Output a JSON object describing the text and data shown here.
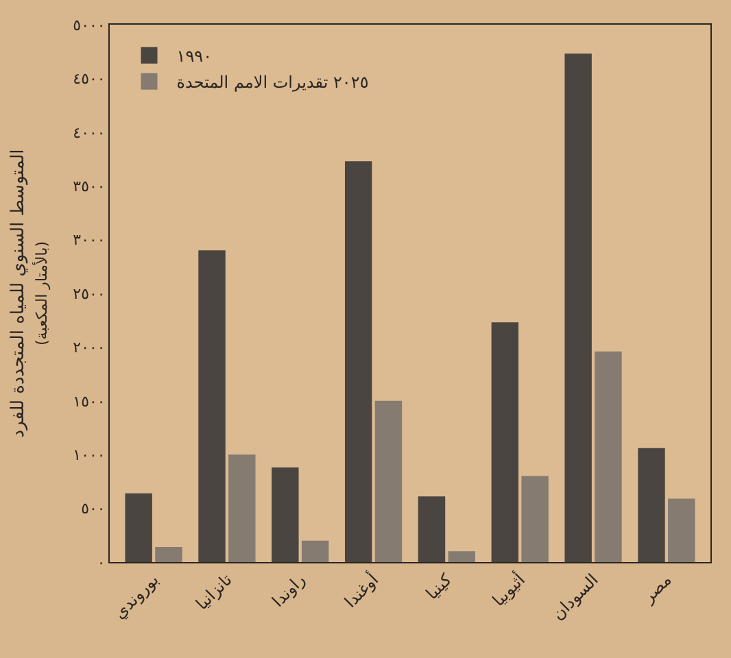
{
  "chart_data": {
    "type": "bar",
    "ylabel": "المتوسط السنوي للمياه المتجددة للفرد$_{(بالأمتار المكعبة)}$",
    "categories": [
      "بوروندي",
      "تانزانيا",
      "راوندا",
      "أوغندا",
      "كينيا",
      "أثيوبيا",
      "السودان",
      "مصر"
    ],
    "series": [
      {
        "name": "١٩٩٠",
        "color": "#4a4540",
        "values": [
          640,
          2900,
          880,
          3730,
          610,
          2230,
          4730,
          1060
        ]
      },
      {
        "name": "٢٠٢٥ تقديرات الامم المتحدة",
        "color": "#857b70",
        "values": [
          140,
          1000,
          200,
          1500,
          100,
          800,
          1960,
          590
        ]
      }
    ],
    "ylim": [
      0,
      5000
    ],
    "yticks": [
      {
        "value": 0,
        "label": "٠"
      },
      {
        "value": 500,
        "label": "٥٠٠"
      },
      {
        "value": 1000,
        "label": "١٠٠٠"
      },
      {
        "value": 1500,
        "label": "١٥٠٠"
      },
      {
        "value": 2000,
        "label": "٢٠٠٠"
      },
      {
        "value": 2500,
        "label": "٢٥٠٠"
      },
      {
        "value": 3000,
        "label": "٣٠٠٠"
      },
      {
        "value": 3500,
        "label": "٣٥٠٠"
      },
      {
        "value": 4000,
        "label": "٤٠٠٠"
      },
      {
        "value": 4500,
        "label": "٤٥٠٠"
      },
      {
        "value": 5000,
        "label": "٥٠٠٠"
      }
    ],
    "grid": false,
    "legend": "top left"
  }
}
